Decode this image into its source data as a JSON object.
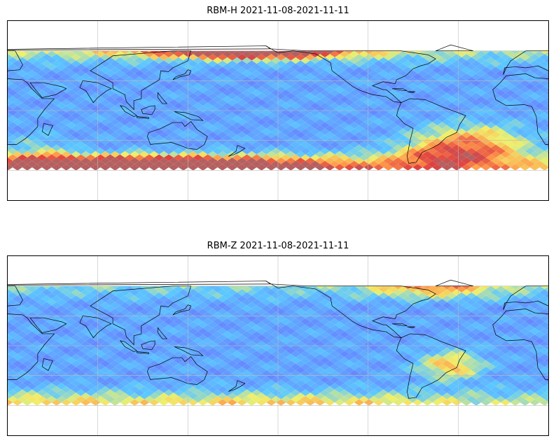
{
  "panels": [
    {
      "title": "RBM-H 2021-11-08-2021-11-11",
      "field": "rbm_h"
    },
    {
      "title": "RBM-Z 2021-11-08-2021-11-11",
      "field": "rbm_z"
    }
  ],
  "map_data": {
    "projection": "PlateCarree",
    "lon_range": [
      20,
      380
    ],
    "lat_range": [
      -90,
      90
    ],
    "data_lat_range": [
      -60,
      60
    ],
    "gridlines": true,
    "gridline_color": "#bdbdbd",
    "colors": {
      "low": "#6a6aff",
      "mid_low": "#5cc8ff",
      "mid": "#f0f06a",
      "mid_high": "#ff9a4a",
      "high": "#e04040",
      "saturated": "#b56060",
      "coast": "#000000",
      "nodata": "#ffffff"
    },
    "colorscale_stops": [
      0,
      0.35,
      0.55,
      0.75,
      0.9,
      1.0
    ]
  }
}
